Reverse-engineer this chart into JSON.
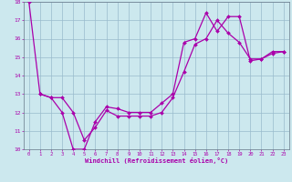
{
  "title": "",
  "xlabel": "Windchill (Refroidissement éolien,°C)",
  "bg_color": "#cce8ee",
  "line_color": "#aa00aa",
  "grid_color": "#99bbcc",
  "xlim": [
    -0.5,
    23.5
  ],
  "ylim": [
    10,
    18
  ],
  "xticks": [
    0,
    1,
    2,
    3,
    4,
    5,
    6,
    7,
    8,
    9,
    10,
    11,
    12,
    13,
    14,
    15,
    16,
    17,
    18,
    19,
    20,
    21,
    22,
    23
  ],
  "yticks": [
    10,
    11,
    12,
    13,
    14,
    15,
    16,
    17,
    18
  ],
  "line1_x": [
    0,
    1,
    2,
    3,
    4,
    5,
    6,
    7,
    8,
    9,
    10,
    11,
    12,
    13,
    14,
    15,
    16,
    17,
    18,
    19,
    20,
    21,
    22,
    23
  ],
  "line1_y": [
    18.0,
    13.0,
    12.8,
    12.0,
    10.0,
    10.0,
    11.5,
    12.3,
    12.2,
    12.0,
    12.0,
    12.0,
    12.5,
    13.0,
    15.8,
    16.0,
    17.4,
    16.4,
    17.2,
    17.2,
    14.8,
    14.9,
    15.3,
    15.3
  ],
  "line2_x": [
    1,
    2,
    3,
    4,
    5,
    6,
    7,
    8,
    9,
    10,
    11,
    12,
    13,
    14,
    15,
    16,
    17,
    18,
    19,
    20,
    21,
    22,
    23
  ],
  "line2_y": [
    13.0,
    12.8,
    12.8,
    12.0,
    10.5,
    11.2,
    12.1,
    11.8,
    11.8,
    11.8,
    11.8,
    12.0,
    12.8,
    14.2,
    15.7,
    16.0,
    17.0,
    16.3,
    15.8,
    14.9,
    14.9,
    15.2,
    15.3
  ]
}
